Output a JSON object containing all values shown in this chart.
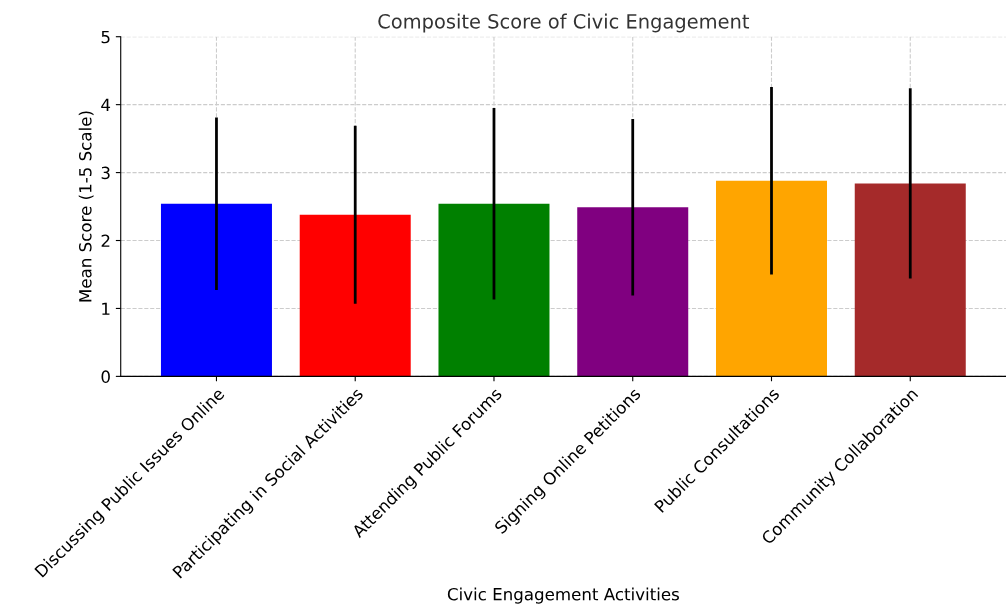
{
  "chart_data": {
    "type": "bar",
    "title": "Composite Score of Civic Engagement",
    "xlabel": "Civic Engagement Activities",
    "ylabel": "Mean Score (1-5 Scale)",
    "categories": [
      "Discussing Public Issues Online",
      "Participating in Social Activities",
      "Attending Public Forums",
      "Signing Online Petitions",
      "Public Consultations",
      "Community Collaboration"
    ],
    "values": [
      2.54,
      2.38,
      2.54,
      2.49,
      2.88,
      2.84
    ],
    "errors": [
      1.27,
      1.31,
      1.41,
      1.3,
      1.38,
      1.4
    ],
    "colors": [
      "#0000ff",
      "#ff0000",
      "#008000",
      "#800080",
      "#ffa500",
      "#a52a2a"
    ],
    "ylim": [
      0,
      5
    ],
    "yticks": [
      0,
      1,
      2,
      3,
      4,
      5
    ],
    "grid": true
  }
}
